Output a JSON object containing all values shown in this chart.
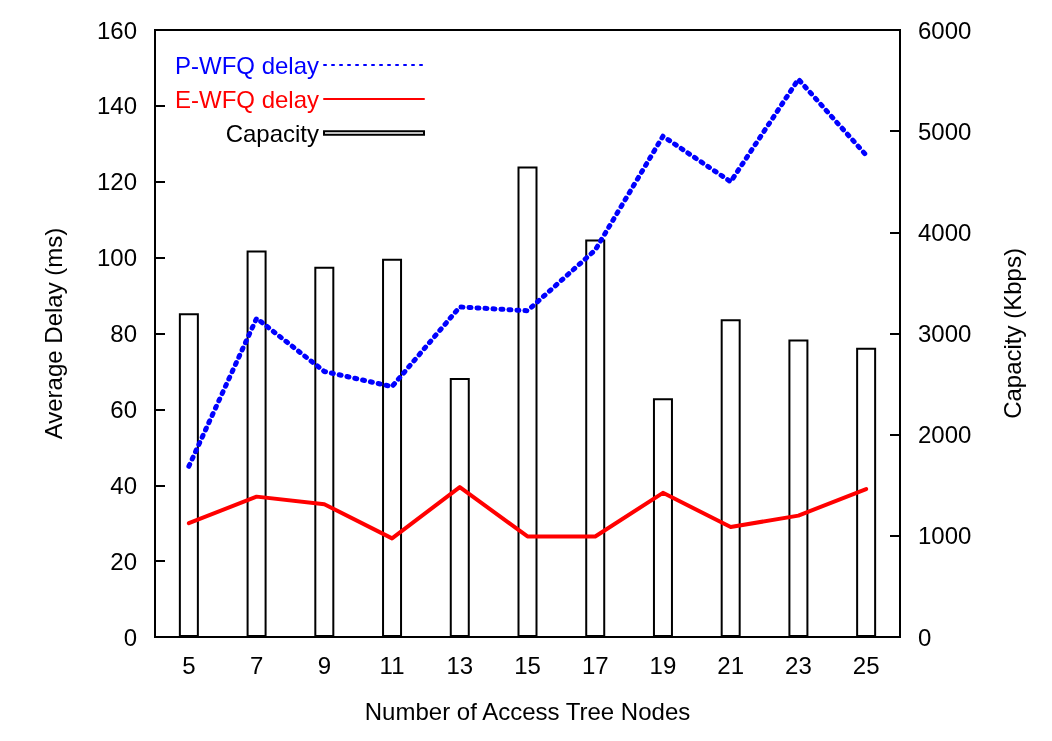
{
  "chart_data": {
    "type": "line",
    "xlabel": "Number of Access Tree Nodes",
    "ylabel": "Average Delay (ms)",
    "y2label": "Capacity (Kbps)",
    "categories": [
      "5",
      "7",
      "9",
      "11",
      "13",
      "15",
      "17",
      "19",
      "21",
      "23",
      "25"
    ],
    "series": [
      {
        "name": "P-WFQ delay",
        "line_style": "dotted",
        "color": "#0000ff",
        "values": [
          45,
          84,
          70,
          66,
          87,
          86,
          102,
          132,
          120,
          147,
          127
        ]
      },
      {
        "name": "E-WFQ delay",
        "line_style": "solid",
        "color": "#ff0000",
        "values": [
          30,
          37,
          35,
          26,
          39.5,
          26.5,
          26.5,
          38,
          29,
          32,
          39
        ]
      },
      {
        "name": "Capacity",
        "type": "bar",
        "axis": "y2",
        "color": "#000000",
        "values": [
          3200,
          3820,
          3660,
          3740,
          2560,
          4650,
          3930,
          2360,
          3140,
          2940,
          2860
        ]
      }
    ],
    "ylim": [
      0,
      160
    ],
    "yticks": [
      0,
      20,
      40,
      60,
      80,
      100,
      120,
      140,
      160
    ],
    "y2lim": [
      0,
      6000
    ],
    "y2ticks": [
      0,
      1000,
      2000,
      3000,
      4000,
      5000,
      6000
    ],
    "legend": "top left",
    "marker": "none",
    "grid": false
  }
}
